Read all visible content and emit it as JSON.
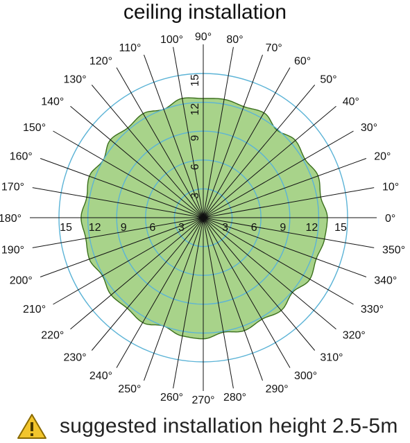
{
  "title": "ceiling installation",
  "footer": {
    "warning_icon": "warning-triangle-icon",
    "note": "suggested installation height 2.5-5m"
  },
  "colors": {
    "fill": "#a8d38a",
    "outline": "#3a6e1c",
    "rings": "#5bb3d6",
    "spokes": "#111111",
    "warning": "#f2c52c"
  },
  "chart_data": {
    "type": "polar-area",
    "title": "ceiling installation",
    "angle_unit": "degrees",
    "angle_labels": [
      "0°",
      "10°",
      "20°",
      "30°",
      "40°",
      "50°",
      "60°",
      "70°",
      "80°",
      "90°",
      "100°",
      "110°",
      "120°",
      "130°",
      "140°",
      "150°",
      "160°",
      "170°",
      "180°",
      "190°",
      "200°",
      "210°",
      "220°",
      "230°",
      "240°",
      "250°",
      "260°",
      "270°",
      "280°",
      "290°",
      "300°",
      "310°",
      "320°",
      "330°",
      "340°",
      "350°"
    ],
    "radial_ticks": [
      3,
      6,
      9,
      12,
      15
    ],
    "radial_range": [
      0,
      15
    ],
    "grid": true,
    "series": [
      {
        "angles": [
          0,
          10,
          20,
          30,
          40,
          50,
          60,
          70,
          80,
          90,
          100,
          110,
          120,
          130,
          140,
          150,
          160,
          170,
          180,
          190,
          200,
          210,
          220,
          230,
          240,
          250,
          260,
          270,
          280,
          290,
          300,
          310,
          320,
          330,
          340,
          350
        ],
        "values": [
          12.9,
          12.4,
          12.7,
          12.2,
          12.5,
          11.9,
          12.6,
          12.3,
          12.5,
          12.4,
          12.6,
          12.0,
          12.5,
          12.2,
          12.6,
          12.0,
          12.6,
          12.3,
          12.7,
          12.4,
          12.6,
          12.1,
          12.5,
          12.3,
          12.6,
          12.0,
          12.5,
          12.6,
          12.1,
          12.5,
          12.2,
          12.6,
          12.1,
          12.8,
          12.5,
          12.8
        ]
      }
    ]
  }
}
